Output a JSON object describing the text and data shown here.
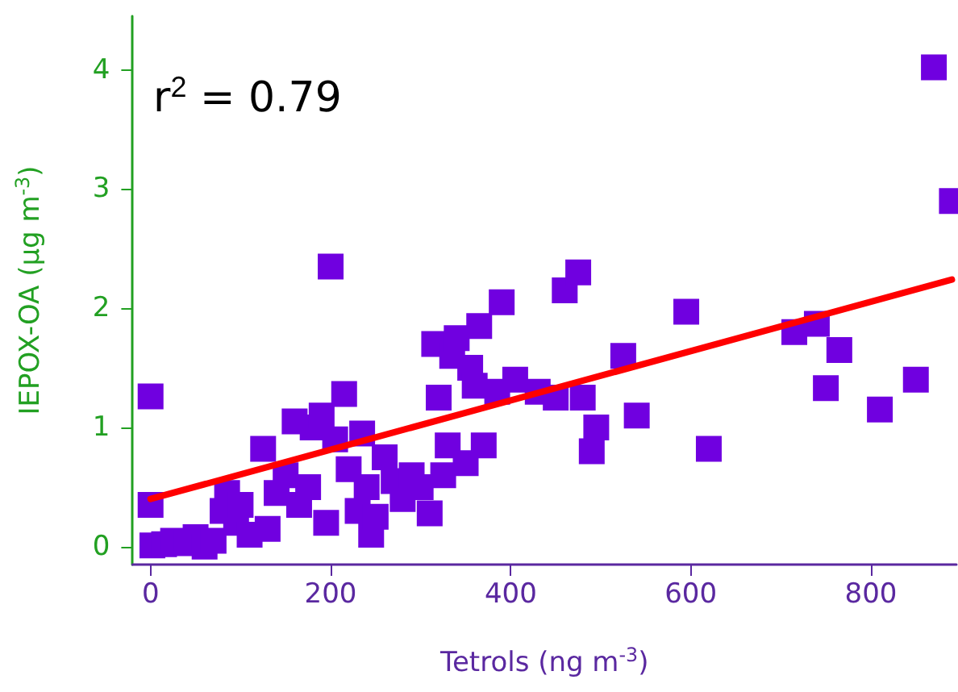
{
  "chart_data": {
    "type": "scatter",
    "xlabel": "Tetrols (ng m$^{-3}$)",
    "ylabel": "IEPOX-OA (μg m$^{-3}$)",
    "annotations": [
      "r$^{2}$ = 0.79"
    ],
    "xlim": [
      -20,
      895
    ],
    "ylim": [
      -0.15,
      4.45
    ],
    "xticks": [
      0,
      200,
      400,
      600,
      800
    ],
    "yticks": [
      0,
      1,
      2,
      3,
      4
    ],
    "marker": "square",
    "series": [
      {
        "color": "#7000e0",
        "x": [
          0,
          0,
          2,
          15,
          25,
          40,
          50,
          60,
          70,
          80,
          85,
          95,
          100,
          110,
          125,
          130,
          140,
          150,
          160,
          165,
          175,
          180,
          190,
          195,
          200,
          205,
          215,
          220,
          230,
          235,
          240,
          245,
          250,
          260,
          270,
          280,
          290,
          300,
          310,
          315,
          320,
          325,
          330,
          335,
          340,
          350,
          355,
          360,
          365,
          370,
          385,
          390,
          405,
          430,
          450,
          460,
          475,
          480,
          490,
          495,
          525,
          540,
          595,
          620,
          715,
          740,
          750,
          765,
          810,
          850,
          870,
          890
        ],
        "values": [
          1.26,
          0.35,
          0.01,
          0.02,
          0.05,
          0.03,
          0.08,
          0.0,
          0.05,
          0.3,
          0.45,
          0.2,
          0.35,
          0.1,
          0.82,
          0.15,
          0.45,
          0.6,
          1.05,
          0.35,
          0.5,
          1.0,
          1.1,
          0.2,
          2.35,
          0.9,
          1.28,
          0.65,
          0.3,
          0.95,
          0.5,
          0.1,
          0.25,
          0.75,
          0.55,
          0.4,
          0.6,
          0.5,
          0.28,
          1.7,
          1.25,
          0.6,
          0.85,
          1.6,
          1.75,
          0.7,
          1.5,
          1.35,
          1.85,
          0.85,
          1.3,
          2.05,
          1.4,
          1.3,
          1.25,
          2.15,
          2.3,
          1.25,
          0.8,
          1.0,
          1.6,
          1.1,
          1.97,
          0.82,
          1.8,
          1.87,
          1.33,
          1.65,
          1.15,
          1.4,
          4.02,
          2.9
        ]
      },
      {
        "type": "line",
        "color": "#ff0000",
        "marker": "none",
        "x": [
          0,
          890
        ],
        "values": [
          0.4,
          2.24
        ]
      }
    ]
  }
}
